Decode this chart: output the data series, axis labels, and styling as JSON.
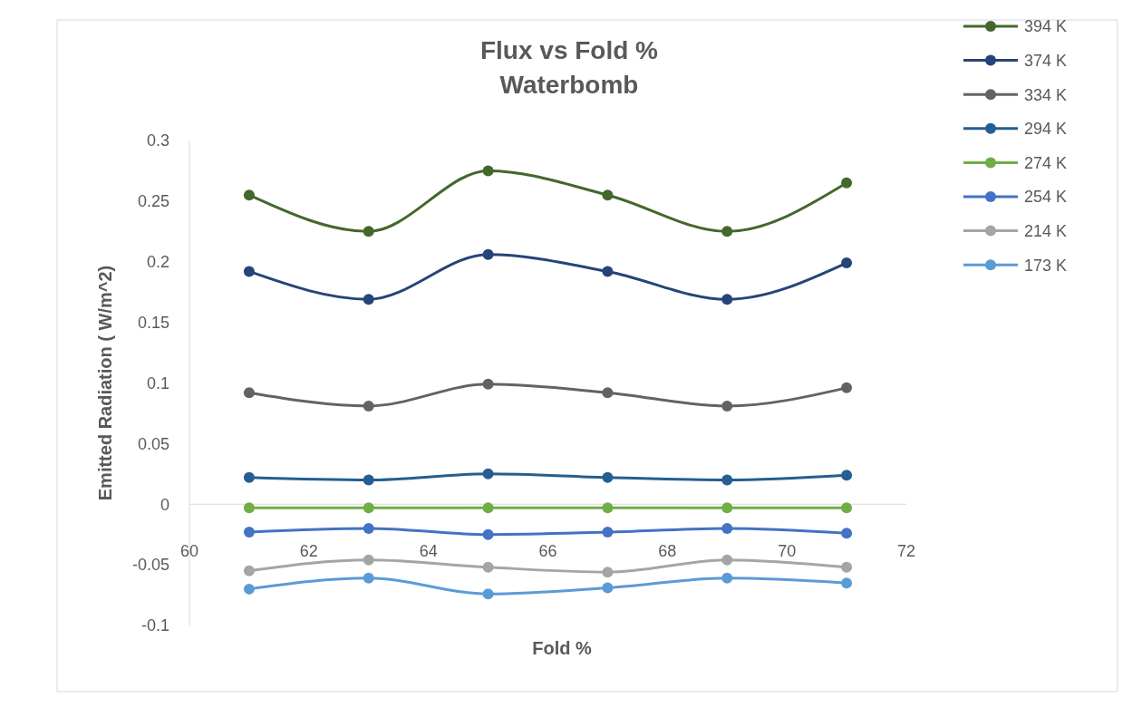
{
  "chart_data": {
    "type": "line",
    "title": "Flux vs Fold %\nWaterbomb",
    "xlabel": "Fold %",
    "ylabel": "Emitted Radiation ( W/m^2)",
    "x": [
      61,
      63,
      65,
      67,
      69,
      71
    ],
    "xlim": [
      60,
      72
    ],
    "xticks": [
      60,
      62,
      64,
      66,
      68,
      70,
      72
    ],
    "ylim": [
      -0.1,
      0.3
    ],
    "yticks": [
      -0.1,
      -0.05,
      0,
      0.05,
      0.1,
      0.15,
      0.2,
      0.25,
      0.3
    ],
    "grid": false,
    "legend": "right",
    "marker": "circle",
    "line_style": "solid",
    "series": [
      {
        "name": "394 K",
        "color": "#43682b",
        "values": [
          0.255,
          0.225,
          0.275,
          0.255,
          0.225,
          0.265
        ]
      },
      {
        "name": "374 K",
        "color": "#264478",
        "values": [
          0.192,
          0.169,
          0.206,
          0.192,
          0.169,
          0.199
        ]
      },
      {
        "name": "334 K",
        "color": "#636363",
        "values": [
          0.092,
          0.081,
          0.099,
          0.092,
          0.081,
          0.096
        ]
      },
      {
        "name": "294 K",
        "color": "#255e91",
        "values": [
          0.022,
          0.02,
          0.025,
          0.022,
          0.02,
          0.024
        ]
      },
      {
        "name": "274 K",
        "color": "#70ad47",
        "values": [
          -0.003,
          -0.003,
          -0.003,
          -0.003,
          -0.003,
          -0.003
        ]
      },
      {
        "name": "254 K",
        "color": "#4472c4",
        "values": [
          -0.023,
          -0.02,
          -0.025,
          -0.023,
          -0.02,
          -0.024
        ]
      },
      {
        "name": "214 K",
        "color": "#a5a5a5",
        "values": [
          -0.055,
          -0.046,
          -0.052,
          -0.056,
          -0.046,
          -0.052
        ]
      },
      {
        "name": "173 K",
        "color": "#5b9bd5",
        "values": [
          -0.07,
          -0.061,
          -0.074,
          -0.069,
          -0.061,
          -0.065
        ]
      }
    ]
  }
}
